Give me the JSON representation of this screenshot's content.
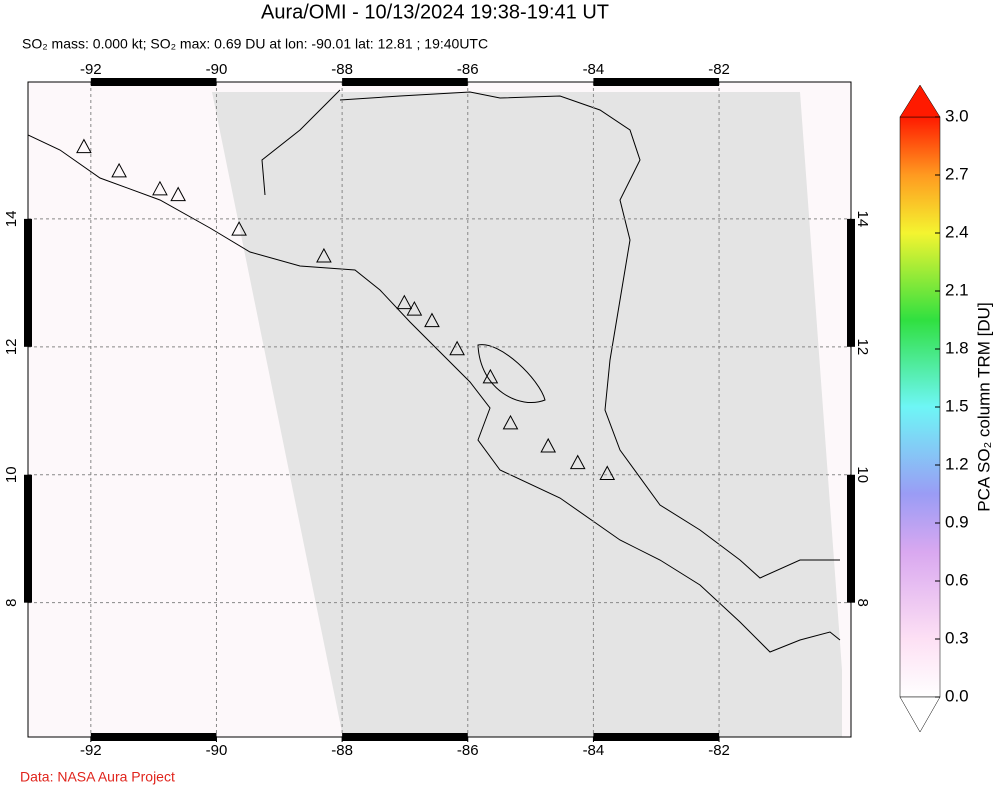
{
  "chart_data": {
    "type": "map",
    "title": "Aura/OMI - 10/13/2024 19:38-19:41 UT",
    "subtitle": "SO₂ mass: 0.000 kt; SO₂ max: 0.69 DU at lon: -90.01 lat: 12.81 ; 19:40UTC",
    "xlim": [
      -93.0,
      -79.9
    ],
    "ylim": [
      5.9,
      16.14
    ],
    "xticks": [
      -92,
      -90,
      -88,
      -86,
      -84,
      -82
    ],
    "yticks": [
      8,
      10,
      12,
      14
    ],
    "grid": true,
    "markers": {
      "lon": [
        -92.11,
        -91.55,
        -90.9,
        -90.61,
        -89.64,
        -88.29,
        -87.01,
        -86.85,
        -86.57,
        -86.17,
        -85.64,
        -85.32,
        -84.72,
        -84.25,
        -83.78
      ],
      "lat": [
        15.13,
        14.75,
        14.47,
        14.38,
        13.84,
        13.42,
        12.69,
        12.59,
        12.41,
        11.97,
        11.53,
        10.81,
        10.45,
        10.19,
        10.02
      ]
    },
    "colorbar": {
      "label": "PCA SO₂ column TRM [DU]",
      "lim": [
        0,
        3
      ],
      "ticks": [
        {
          "value": 0,
          "label": "0.0"
        },
        {
          "value": 0.3,
          "label": "0.3"
        },
        {
          "value": 0.6,
          "label": "0.6"
        },
        {
          "value": 0.9,
          "label": "0.9"
        },
        {
          "value": 1.2,
          "label": "1.2"
        },
        {
          "value": 1.5,
          "label": "1.5"
        },
        {
          "value": 1.8,
          "label": "1.8"
        },
        {
          "value": 2.1,
          "label": "2.1"
        },
        {
          "value": 2.4,
          "label": "2.4"
        },
        {
          "value": 2.7,
          "label": "2.7"
        },
        {
          "value": 3,
          "label": "3.0"
        }
      ]
    },
    "credit": "Data: NASA Aura Project"
  }
}
